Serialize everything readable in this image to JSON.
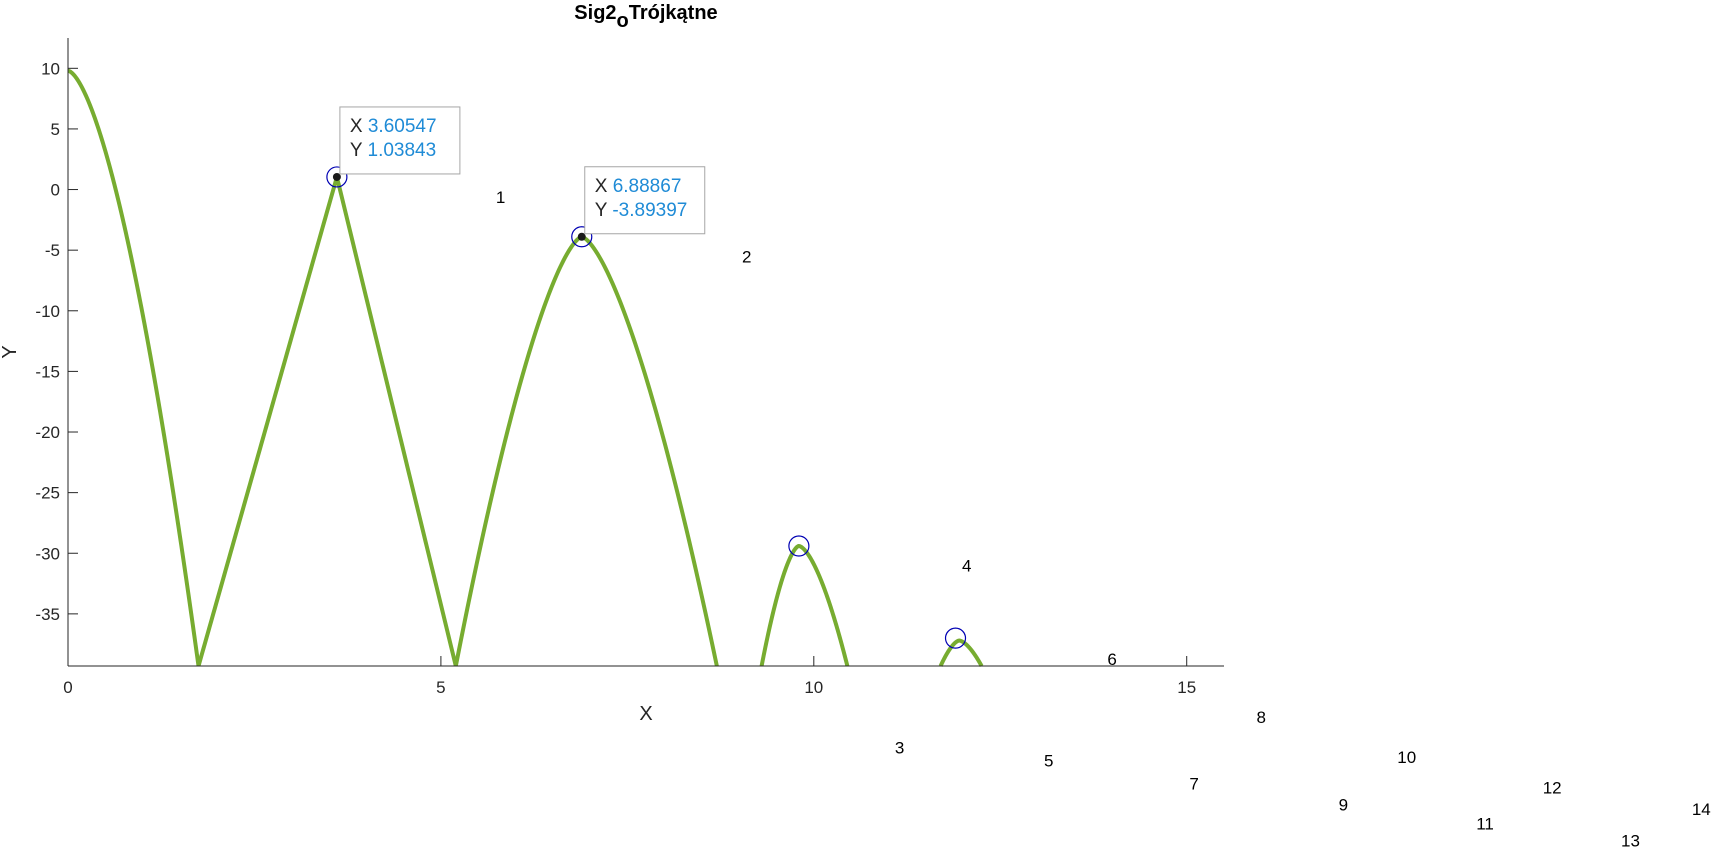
{
  "chart_data": {
    "type": "line",
    "title": {
      "main": "Sig2",
      "subscript": "o",
      "rest": "Trójkątne"
    },
    "xlabel": "X",
    "ylabel": "Y",
    "xlim": [
      0,
      15.5
    ],
    "ylim": [
      -39.3,
      12.5
    ],
    "xticks": [
      0,
      5,
      10,
      15
    ],
    "yticks": [
      10,
      5,
      0,
      -5,
      -10,
      -15,
      -20,
      -25,
      -30,
      -35
    ],
    "grid": false,
    "line_color": "#77ac30",
    "marker_color": "#0000b3",
    "tooltip_value_color": "#1f8bd6",
    "lobes": [
      {
        "peak_x": 0.0,
        "peak_y": 9.8,
        "end_x": 1.75,
        "side": "right",
        "shape_exp": 1.6
      },
      {
        "start_x": 1.75,
        "peak_x": 3.60547,
        "peak_y": 1.03843,
        "end_x": 5.2,
        "shape_exp": 1.0
      },
      {
        "start_x": 5.2,
        "peak_x": 6.88867,
        "peak_y": -3.89397,
        "end_x": 8.7,
        "shape_exp": 1.5
      },
      {
        "start_x": 9.3,
        "peak_x": 9.8,
        "peak_y": -29.4,
        "end_x": 10.45,
        "shape_exp": 1.6
      },
      {
        "start_x": 11.7,
        "peak_x": 11.95,
        "peak_y": -37.2,
        "end_x": 12.25,
        "shape_exp": 1.6
      }
    ],
    "peak_markers": [
      {
        "x": 3.60547,
        "y": 1.03843
      },
      {
        "x": 6.88867,
        "y": -3.89397
      },
      {
        "x": 9.8,
        "y": -29.4
      },
      {
        "x": 11.9,
        "y": -37.0
      }
    ],
    "datatips": [
      {
        "x_label": "X",
        "x_value": "3.60547",
        "y_label": "Y",
        "y_value": "1.03843",
        "x": 3.60547,
        "y": 1.03843
      },
      {
        "x_label": "X",
        "x_value": "6.88867",
        "y_label": "Y",
        "y_value": "-3.89397",
        "x": 6.88867,
        "y": -3.89397
      }
    ],
    "annotations": [
      {
        "text": "1",
        "x": 5.8,
        "y": -1.1
      },
      {
        "text": "2",
        "x": 9.1,
        "y": -6.0
      },
      {
        "text": "4",
        "x": 12.05,
        "y": -31.5
      },
      {
        "text": "6",
        "x": 14.0,
        "y": -39.2
      },
      {
        "text": "3",
        "x": 11.15,
        "y": -46.5
      },
      {
        "text": "8",
        "x": 16.0,
        "y": -44.0
      },
      {
        "text": "5",
        "x": 13.15,
        "y": -47.6
      },
      {
        "text": "10",
        "x": 17.95,
        "y": -47.3
      },
      {
        "text": "7",
        "x": 15.1,
        "y": -49.5
      },
      {
        "text": "12",
        "x": 19.9,
        "y": -49.8
      },
      {
        "text": "9",
        "x": 17.1,
        "y": -51.2
      },
      {
        "text": "11",
        "x": 19.0,
        "y": -52.8
      },
      {
        "text": "14",
        "x": 21.9,
        "y": -51.6
      },
      {
        "text": "13",
        "x": 20.95,
        "y": -54.2
      }
    ]
  }
}
